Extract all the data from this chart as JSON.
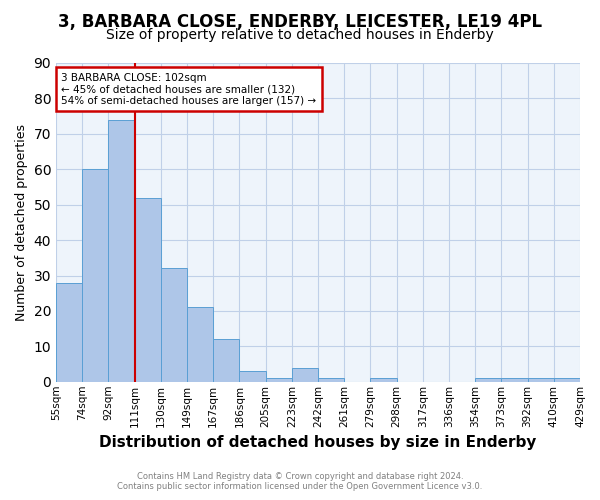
{
  "title": "3, BARBARA CLOSE, ENDERBY, LEICESTER, LE19 4PL",
  "subtitle": "Size of property relative to detached houses in Enderby",
  "xlabel": "Distribution of detached houses by size in Enderby",
  "ylabel": "Number of detached properties",
  "bin_labels": [
    "55sqm",
    "74sqm",
    "92sqm",
    "111sqm",
    "130sqm",
    "149sqm",
    "167sqm",
    "186sqm",
    "205sqm",
    "223sqm",
    "242sqm",
    "261sqm",
    "279sqm",
    "298sqm",
    "317sqm",
    "336sqm",
    "354sqm",
    "373sqm",
    "392sqm",
    "410sqm",
    "429sqm"
  ],
  "bar_heights": [
    28,
    60,
    74,
    52,
    32,
    21,
    12,
    3,
    1,
    4,
    1,
    0,
    1,
    0,
    0,
    0,
    1,
    1,
    1,
    1
  ],
  "bar_color": "#aec6e8",
  "bar_edge_color": "#5a9fd4",
  "annotation_line1": "3 BARBARA CLOSE: 102sqm",
  "annotation_line2": "← 45% of detached houses are smaller (132)",
  "annotation_line3": "54% of semi-detached houses are larger (157) →",
  "annotation_box_color": "#cc0000",
  "vline_x": 2.5,
  "vline_color": "#cc0000",
  "ylim": [
    0,
    90
  ],
  "yticks": [
    0,
    10,
    20,
    30,
    40,
    50,
    60,
    70,
    80,
    90
  ],
  "grid_color": "#c0d0e8",
  "background_color": "#eef4fb",
  "footer_line1": "Contains HM Land Registry data © Crown copyright and database right 2024.",
  "footer_line2": "Contains public sector information licensed under the Open Government Licence v3.0.",
  "title_fontsize": 12,
  "subtitle_fontsize": 10,
  "xlabel_fontsize": 11,
  "ylabel_fontsize": 9
}
